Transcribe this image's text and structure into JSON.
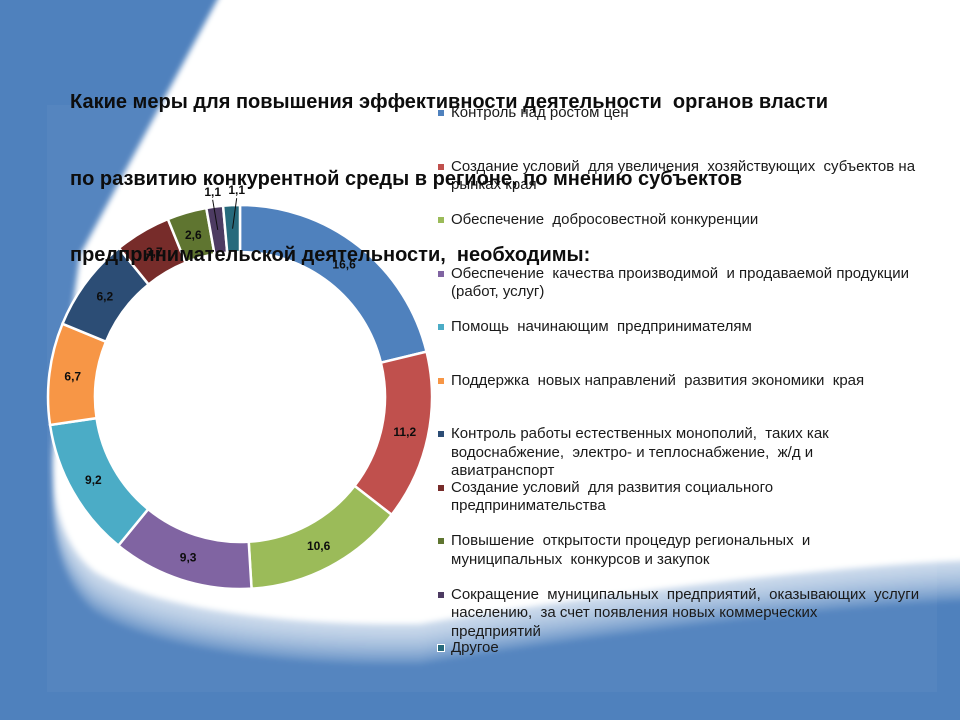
{
  "slide": {
    "title_lines": [
      "Какие меры для повышения эффективности деятельности  органов власти",
      "по развитию конкурентной среды в регионе, по мнению субъектов",
      "предпринимательской деятельности,  необходимы:"
    ],
    "background_color": "#4F81BD"
  },
  "legend": {
    "items": [
      {
        "lines": [
          "Контроль над ростом цен"
        ],
        "color": "#4F81BD"
      },
      {
        "lines": [
          "Создание условий  для увеличения  хозяйствующих  субъектов на",
          "рынках края"
        ],
        "color": "#C0504D"
      },
      {
        "lines": [
          "Обеспечение  добросовестной конкуренции"
        ],
        "color": "#9BBB59"
      },
      {
        "lines": [
          "Обеспечение  качества производимой  и продаваемой продукции",
          "(работ, услуг)"
        ],
        "color": "#8064A2"
      },
      {
        "lines": [
          "Помощь  начинающим  предпринимателям"
        ],
        "color": "#4BACC6"
      },
      {
        "lines": [
          "Поддержка  новых направлений  развития экономики  края"
        ],
        "color": "#F79646"
      },
      {
        "lines": [
          "Контроль работы естественных монополий,  таких как",
          "водоснабжение,  электро- и теплоснабжение,  ж/д и",
          "авиатранспорт"
        ],
        "color": "#2C4D75"
      },
      {
        "lines": [
          "Создание условий  для развития социального",
          "предпринимательства"
        ],
        "color": "#772C2A"
      },
      {
        "lines": [
          "Повышение  открытости процедур региональных  и",
          "муниципальных  конкурсов и закупок"
        ],
        "color": "#5F7530"
      },
      {
        "lines": [
          "Сокращение  муниципальных  предприятий,  оказывающих  услуги",
          "населению,  за счет появления новых коммерческих",
          "предприятий"
        ],
        "color": "#4D3B62"
      },
      {
        "lines": [
          "Другое"
        ],
        "color": "#276A7C"
      }
    ]
  },
  "chart_data": {
    "type": "pie",
    "variant": "doughnut",
    "title": "Какие меры для повышения эффективности деятельности органов власти по развитию конкурентной среды в регионе, по мнению субъектов предпринимательской деятельности, необходимы:",
    "categories": [
      "Контроль над ростом цен",
      "Создание условий для увеличения хозяйствующих субъектов на рынках края",
      "Обеспечение добросовестной конкуренции",
      "Обеспечение качества производимой и продаваемой продукции (работ, услуг)",
      "Помощь начинающим предпринимателям",
      "Поддержка новых направлений развития экономики края",
      "Контроль работы естественных монополий, таких как водоснабжение, электро- и теплоснабжение, ж/д и авиатранспорт",
      "Создание условий для развития социального предпринимательства",
      "Повышение открытости процедур региональных и муниципальных конкурсов и закупок",
      "Сокращение муниципальных предприятий, оказывающих услуги населению, за счет появления новых коммерческих предприятий",
      "Другое"
    ],
    "values": [
      16.6,
      11.2,
      10.6,
      9.3,
      9.2,
      6.7,
      6.2,
      3.7,
      2.6,
      1.1,
      1.1
    ],
    "value_labels": [
      "16,6",
      "11,2",
      "10,6",
      "9,3",
      "9,2",
      "6,7",
      "6,2",
      "3,7",
      "2,6",
      "1,1",
      "1,1"
    ],
    "colors": [
      "#4F81BD",
      "#C0504D",
      "#9BBB59",
      "#8064A2",
      "#4BACC6",
      "#F79646",
      "#2C4D75",
      "#772C2A",
      "#5F7530",
      "#4D3B62",
      "#276A7C"
    ],
    "label_placement": [
      "inside",
      "inside",
      "inside",
      "inside",
      "inside",
      "inside",
      "inside",
      "inside",
      "inside",
      "outside",
      "outside"
    ],
    "start_angle_deg": 0,
    "direction": "clockwise",
    "legend_position": "right",
    "grid": false
  }
}
